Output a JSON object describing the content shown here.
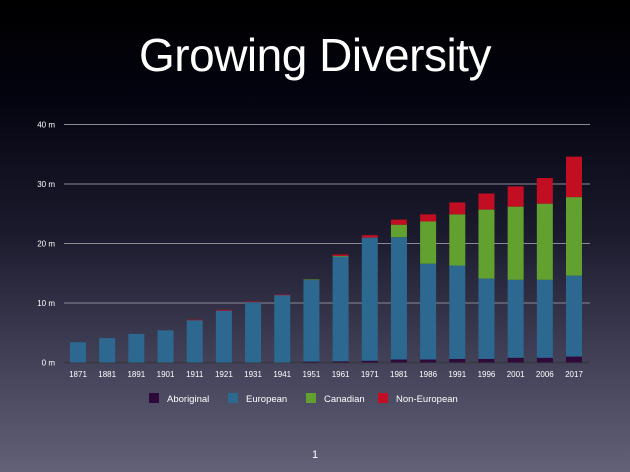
{
  "slide": {
    "title": "Growing Diversity",
    "page_number": "1"
  },
  "chart_data": {
    "type": "bar",
    "stacked": true,
    "categories": [
      "1871",
      "1881",
      "1891",
      "1901",
      "1911",
      "1921",
      "1931",
      "1941",
      "1951",
      "1961",
      "1971",
      "1981",
      "1986",
      "1991",
      "1996",
      "2001",
      "2006",
      "2017"
    ],
    "series": [
      {
        "name": "Aboriginal",
        "color": "#2e0a3a",
        "values": [
          0.0,
          0.0,
          0.0,
          0.0,
          0.0,
          0.0,
          0.0,
          0.0,
          0.15,
          0.2,
          0.3,
          0.5,
          0.5,
          0.6,
          0.6,
          0.8,
          0.8,
          1.0
        ]
      },
      {
        "name": "European",
        "color": "#2d6890",
        "values": [
          3.4,
          4.1,
          4.8,
          5.4,
          7.1,
          8.7,
          10.15,
          11.35,
          13.7,
          17.6,
          20.7,
          20.56,
          16.1,
          15.7,
          13.5,
          13.1,
          13.1,
          13.6
        ]
      },
      {
        "name": "Canadian",
        "color": "#62a12f",
        "values": [
          0,
          0,
          0,
          0,
          0,
          0,
          0,
          0,
          0.1,
          0.1,
          0,
          2.1,
          7.1,
          8.6,
          11.6,
          12.3,
          12.8,
          13.2
        ]
      },
      {
        "name": "Non-European",
        "color": "#c20e22",
        "values": [
          0,
          0,
          0,
          0,
          0.1,
          0.15,
          0.1,
          0.05,
          0.0,
          0.25,
          0.4,
          0.85,
          1.2,
          2.0,
          2.7,
          3.4,
          4.3,
          6.8
        ]
      }
    ],
    "yticks": [
      "0 m",
      "10 m",
      "20 m",
      "30 m",
      "40 m"
    ],
    "ylim": [
      0,
      40
    ],
    "yunit": "millions",
    "grid": true,
    "legend": "bottom",
    "title": "Growing Diversity",
    "xlabel": "",
    "ylabel": ""
  }
}
